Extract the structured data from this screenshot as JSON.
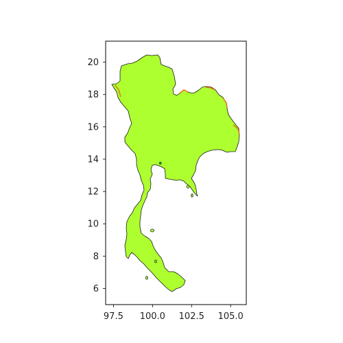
{
  "map": {
    "region": "Thailand",
    "land_color": "#adff2f",
    "border_color": "#1a1a1a",
    "highlight_color": "#e8731c",
    "point_color": "#1f7a1f",
    "x_ticks": [
      "97.5",
      "100.0",
      "102.5",
      "105.0"
    ],
    "y_ticks": [
      "6",
      "8",
      "10",
      "12",
      "14",
      "16",
      "18",
      "20"
    ],
    "xlim": [
      97.0,
      106.0
    ],
    "ylim": [
      5.0,
      21.3
    ],
    "marker": {
      "lon": 100.5,
      "lat": 13.75
    }
  }
}
